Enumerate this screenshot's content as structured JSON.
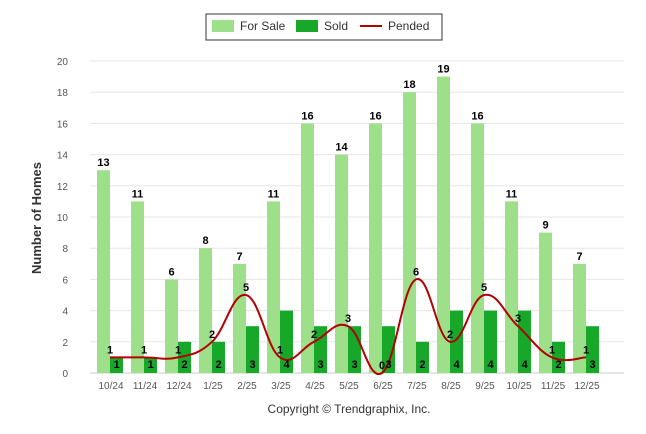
{
  "chart_data": {
    "type": "bar",
    "title": "",
    "xlabel": "",
    "ylabel": "Number of Homes",
    "ylim": [
      0,
      20
    ],
    "yticks": [
      0,
      2,
      4,
      6,
      8,
      10,
      12,
      14,
      16,
      18,
      20
    ],
    "grid": true,
    "legend_position": "top-center",
    "categories": [
      "10/24",
      "11/24",
      "12/24",
      "1/25",
      "2/25",
      "3/25",
      "4/25",
      "5/25",
      "6/25",
      "7/25",
      "8/25",
      "9/25",
      "10/25",
      "11/25",
      "12/25"
    ],
    "series": [
      {
        "name": "For Sale",
        "kind": "bar",
        "color": "#9ee08a",
        "values": [
          13,
          11,
          6,
          8,
          7,
          11,
          16,
          14,
          16,
          18,
          19,
          16,
          11,
          9,
          7
        ]
      },
      {
        "name": "Sold",
        "kind": "bar",
        "color": "#17a82a",
        "values": [
          1,
          1,
          2,
          2,
          3,
          4,
          3,
          3,
          3,
          2,
          4,
          4,
          4,
          2,
          3
        ]
      },
      {
        "name": "Pended",
        "kind": "line",
        "color": "#b30000",
        "values": [
          1,
          1,
          1,
          2,
          5,
          1,
          2,
          3,
          0,
          6,
          2,
          5,
          3,
          1,
          1
        ]
      }
    ],
    "footer": "Copyright © Trendgraphix, Inc."
  }
}
